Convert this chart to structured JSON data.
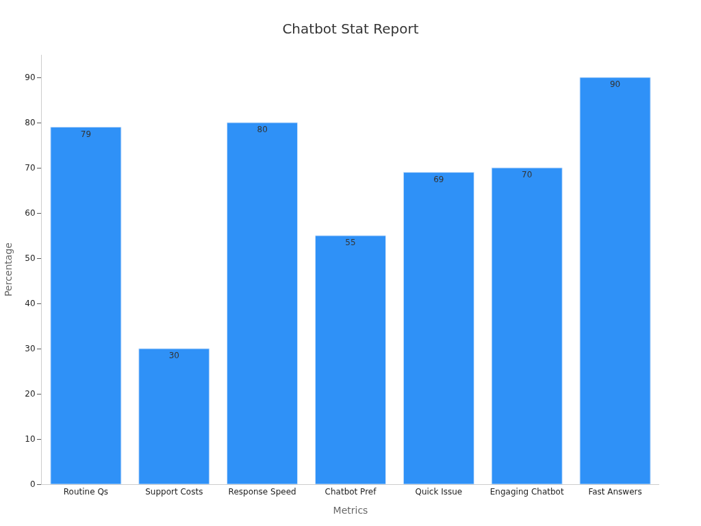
{
  "chart_data": {
    "type": "bar",
    "title": "Chatbot Stat Report",
    "xlabel": "Metrics",
    "ylabel": "Percentage",
    "categories": [
      "Routine Qs",
      "Support Costs",
      "Response Speed",
      "Chatbot Pref",
      "Quick Issue",
      "Engaging Chatbot",
      "Fast Answers"
    ],
    "values": [
      79,
      30,
      80,
      55,
      69,
      70,
      90
    ],
    "color": "#2f91f7",
    "ylim": [
      0,
      95
    ],
    "yticks": [
      0,
      10,
      20,
      30,
      40,
      50,
      60,
      70,
      80,
      90
    ],
    "data_labels": true
  }
}
